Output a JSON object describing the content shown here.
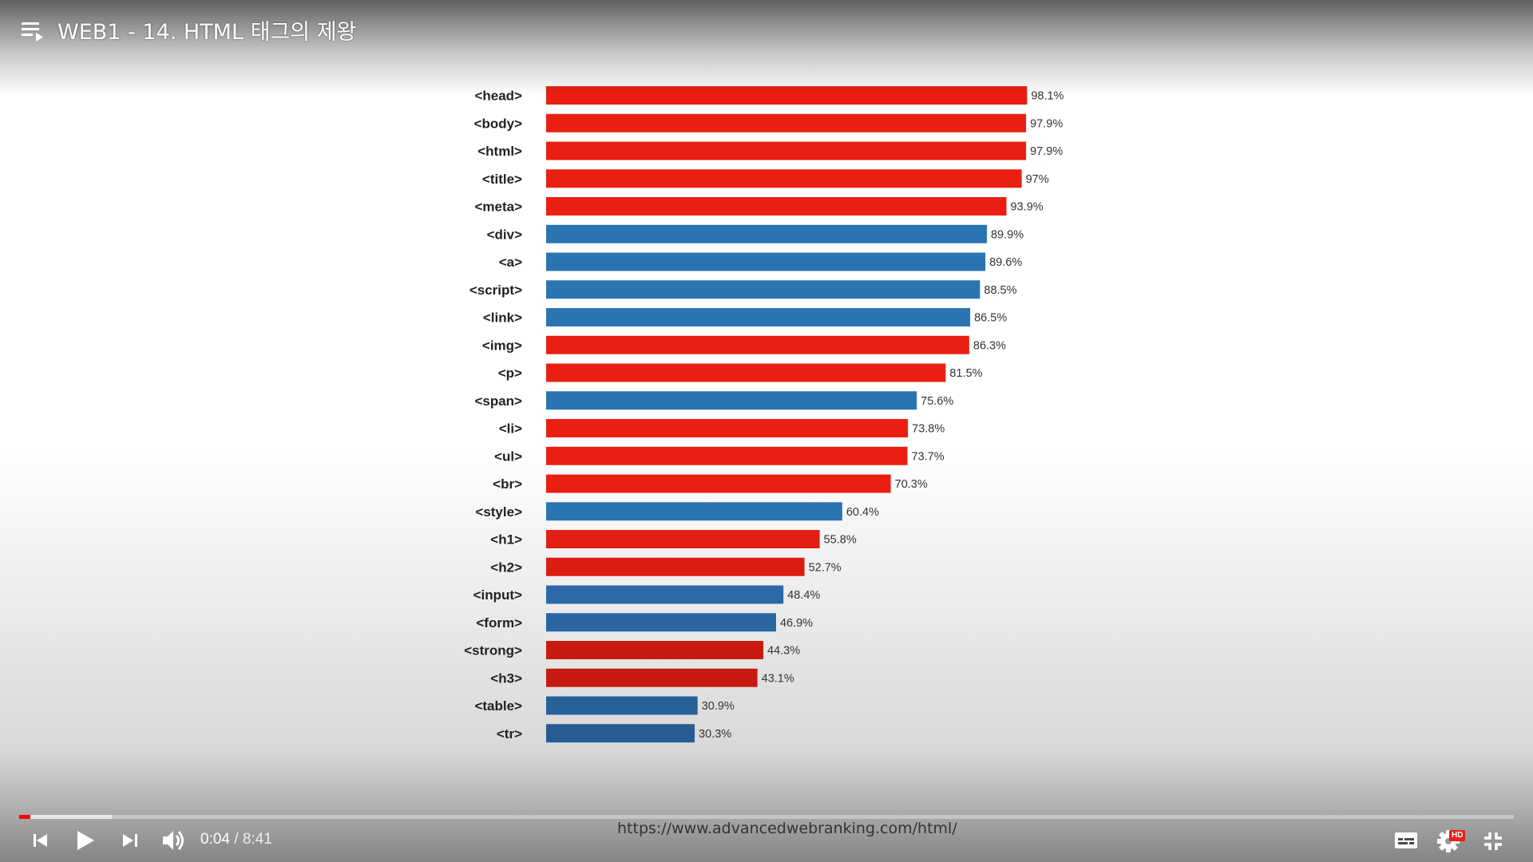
{
  "player": {
    "title": "WEB1 - 14. HTML 태그의 제왕",
    "time_current": "0:04",
    "time_separator": " / ",
    "time_total": "8:41",
    "progress_played": 0.0077,
    "progress_buffered": 0.062,
    "hd_badge": "HD",
    "accent_color": "#ff0000"
  },
  "icons": {
    "playlist": "playlist-icon",
    "previous": "skip-previous-icon",
    "play": "play-icon",
    "next": "skip-next-icon",
    "volume": "volume-icon",
    "subtitles": "subtitles-icon",
    "settings": "gear-icon",
    "exit_fullscreen": "exit-fullscreen-icon"
  },
  "video_frame": {
    "source_url": "https://www.advancedwebranking.com/html/"
  },
  "chart_data": {
    "type": "bar",
    "orientation": "horizontal",
    "categories": [
      "<head>",
      "<body>",
      "<html>",
      "<title>",
      "<meta>",
      "<div>",
      "<a>",
      "<script>",
      "<link>",
      "<img>",
      "<p>",
      "<span>",
      "<li>",
      "<ul>",
      "<br>",
      "<style>",
      "<h1>",
      "<h2>",
      "<input>",
      "<form>",
      "<strong>",
      "<h3>",
      "<table>",
      "<tr>"
    ],
    "values": [
      98.1,
      97.9,
      97.9,
      97,
      93.9,
      89.9,
      89.6,
      88.5,
      86.5,
      86.3,
      81.5,
      75.6,
      73.8,
      73.7,
      70.3,
      60.4,
      55.8,
      52.7,
      48.4,
      46.9,
      44.3,
      43.1,
      30.9,
      30.3
    ],
    "value_labels": [
      "98.1%",
      "97.9%",
      "97.9%",
      "97%",
      "93.9%",
      "89.9%",
      "89.6%",
      "88.5%",
      "86.5%",
      "86.3%",
      "81.5%",
      "75.6%",
      "73.8%",
      "73.7%",
      "70.3%",
      "60.4%",
      "55.8%",
      "52.7%",
      "48.4%",
      "46.9%",
      "44.3%",
      "43.1%",
      "30.9%",
      "30.3%"
    ],
    "bar_colors": [
      "#ea1f11",
      "#ea1f11",
      "#ea1f11",
      "#ea1f11",
      "#ea1f11",
      "#2a74b2",
      "#2a74b2",
      "#2a74b2",
      "#2a74b2",
      "#ea1f11",
      "#ea1f11",
      "#2a74b2",
      "#ea1f11",
      "#ea1f11",
      "#ea1f11",
      "#2a74b2",
      "#e31e12",
      "#dc1d12",
      "#2a6aa6",
      "#2a66a1",
      "#c91a10",
      "#c61a10",
      "#28609a",
      "#265b93"
    ],
    "xlim": [
      0,
      100
    ],
    "grid": false,
    "legend": "none",
    "title": "",
    "xlabel": "",
    "ylabel": ""
  }
}
